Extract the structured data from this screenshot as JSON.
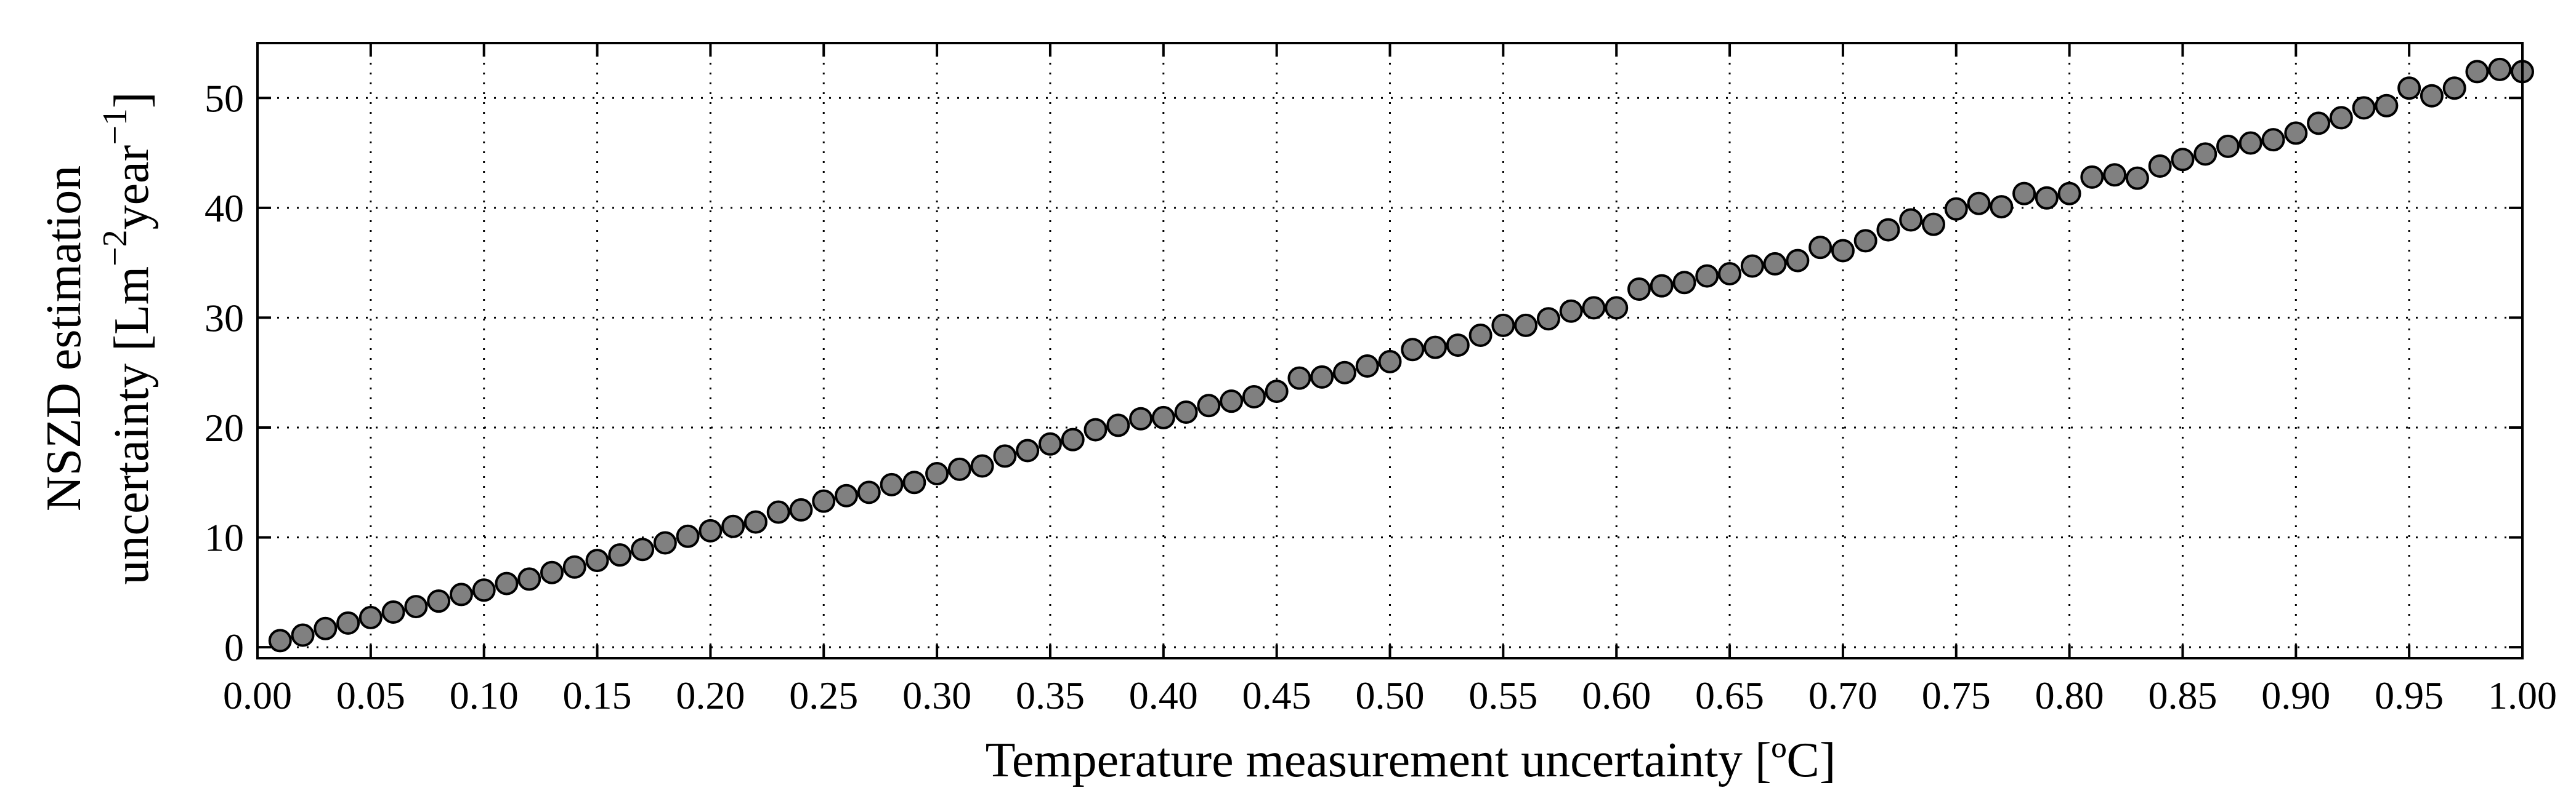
{
  "chart_data": {
    "type": "scatter",
    "xlabel": "Temperature measurement uncertainty [ºC]",
    "ylabel": {
      "line1": "NSZD estimation",
      "line2_prefix": "uncertainty [Lm",
      "line2_sup1": "−2",
      "line2_mid": "year",
      "line2_sup2": "−1",
      "line2_suffix": "]"
    },
    "xlim": [
      0.0,
      1.0
    ],
    "ylim": [
      -1,
      55
    ],
    "x_ticks": [
      0.0,
      0.05,
      0.1,
      0.15,
      0.2,
      0.25,
      0.3,
      0.35,
      0.4,
      0.45,
      0.5,
      0.55,
      0.6,
      0.65,
      0.7,
      0.75,
      0.8,
      0.85,
      0.9,
      0.95,
      1.0
    ],
    "x_tick_labels": [
      "0.00",
      "0.05",
      "0.10",
      "0.15",
      "0.20",
      "0.25",
      "0.30",
      "0.35",
      "0.40",
      "0.45",
      "0.50",
      "0.55",
      "0.60",
      "0.65",
      "0.70",
      "0.75",
      "0.80",
      "0.85",
      "0.90",
      "0.95",
      "1.00"
    ],
    "y_ticks": [
      0,
      10,
      20,
      30,
      40,
      50
    ],
    "y_tick_labels": [
      "0",
      "10",
      "20",
      "30",
      "40",
      "50"
    ],
    "grid": true,
    "grid_style": "dotted",
    "marker_color": "#808080",
    "marker_edge_color": "#000000",
    "x": [
      0.01,
      0.02,
      0.03,
      0.04,
      0.05,
      0.06,
      0.07,
      0.08,
      0.09,
      0.1,
      0.11,
      0.12,
      0.13,
      0.14,
      0.15,
      0.16,
      0.17,
      0.18,
      0.19,
      0.2,
      0.21,
      0.22,
      0.23,
      0.24,
      0.25,
      0.26,
      0.27,
      0.28,
      0.29,
      0.3,
      0.31,
      0.32,
      0.33,
      0.34,
      0.35,
      0.36,
      0.37,
      0.38,
      0.39,
      0.4,
      0.41,
      0.42,
      0.43,
      0.44,
      0.45,
      0.46,
      0.47,
      0.48,
      0.49,
      0.5,
      0.51,
      0.52,
      0.53,
      0.54,
      0.55,
      0.56,
      0.57,
      0.58,
      0.59,
      0.6,
      0.61,
      0.62,
      0.63,
      0.64,
      0.65,
      0.66,
      0.67,
      0.68,
      0.69,
      0.7,
      0.71,
      0.72,
      0.73,
      0.74,
      0.75,
      0.76,
      0.77,
      0.78,
      0.79,
      0.8,
      0.81,
      0.82,
      0.83,
      0.84,
      0.85,
      0.86,
      0.87,
      0.88,
      0.89,
      0.9,
      0.91,
      0.92,
      0.93,
      0.94,
      0.95,
      0.96,
      0.97,
      0.98,
      0.99,
      1.0
    ],
    "y": [
      0.6,
      1.1,
      1.7,
      2.2,
      2.7,
      3.2,
      3.7,
      4.2,
      4.8,
      5.2,
      5.8,
      6.2,
      6.8,
      7.3,
      7.9,
      8.4,
      8.9,
      9.5,
      10.1,
      10.6,
      11.0,
      11.4,
      12.3,
      12.5,
      13.3,
      13.8,
      14.1,
      14.8,
      15.0,
      15.8,
      16.2,
      16.5,
      17.4,
      17.9,
      18.5,
      18.9,
      19.8,
      20.2,
      20.8,
      20.9,
      21.4,
      22.0,
      22.4,
      22.8,
      23.3,
      24.5,
      24.6,
      25.0,
      25.6,
      26.0,
      27.1,
      27.3,
      27.5,
      28.4,
      29.3,
      29.3,
      29.9,
      30.6,
      30.9,
      30.9,
      32.6,
      32.9,
      33.2,
      33.8,
      34.0,
      34.7,
      34.9,
      35.2,
      36.4,
      36.1,
      37.0,
      38.0,
      38.9,
      38.5,
      39.9,
      40.4,
      40.1,
      41.3,
      40.9,
      41.3,
      42.8,
      43.0,
      42.7,
      43.8,
      44.4,
      44.9,
      45.6,
      45.9,
      46.2,
      46.8,
      47.7,
      48.2,
      49.1,
      49.3,
      50.9,
      50.2,
      50.9,
      52.4,
      52.6,
      52.4
    ]
  }
}
